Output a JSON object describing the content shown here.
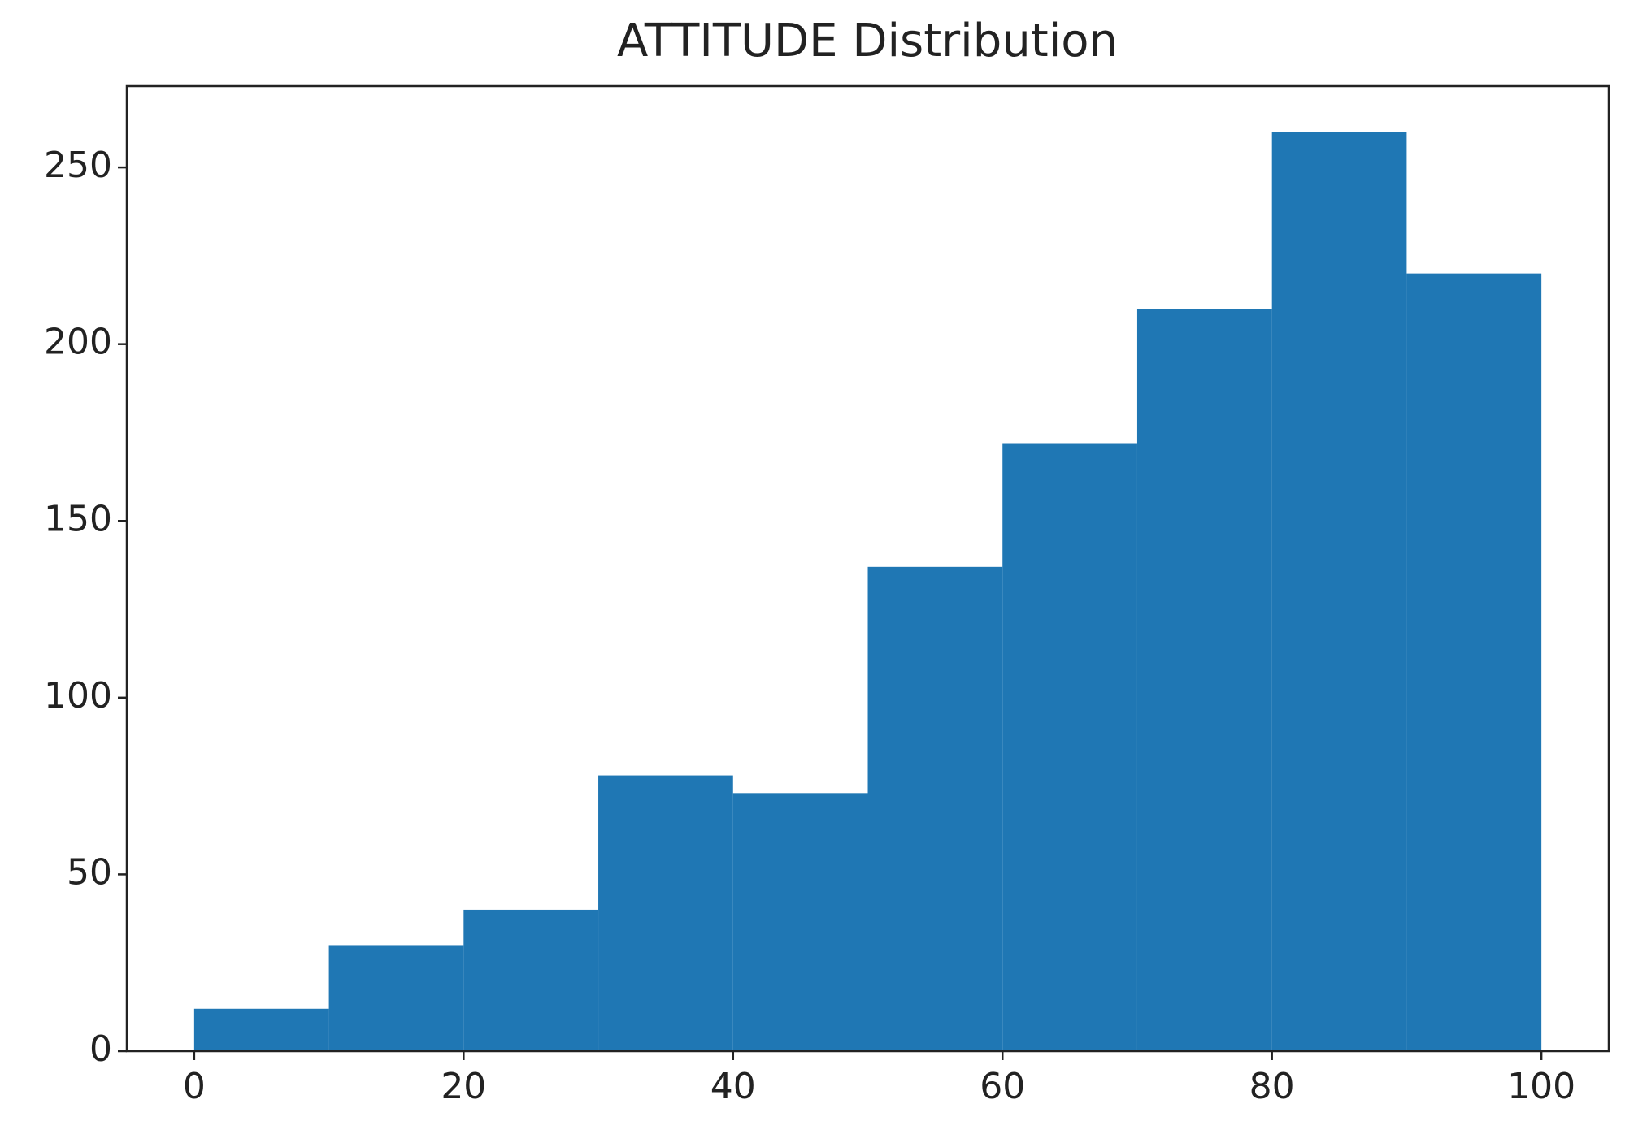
{
  "chart_data": {
    "type": "histogram",
    "title": "ATTITUDE Distribution",
    "bins": [
      0,
      10,
      20,
      30,
      40,
      50,
      60,
      70,
      80,
      90,
      100
    ],
    "values": [
      12,
      30,
      40,
      78,
      73,
      137,
      172,
      210,
      260,
      220
    ],
    "color": "#1f77b4",
    "xlim": [
      -5,
      105
    ],
    "xticks": [
      0,
      20,
      40,
      60,
      80,
      100
    ],
    "ylim": [
      0,
      273
    ],
    "yticks": [
      0,
      50,
      100,
      150,
      200,
      250
    ]
  }
}
